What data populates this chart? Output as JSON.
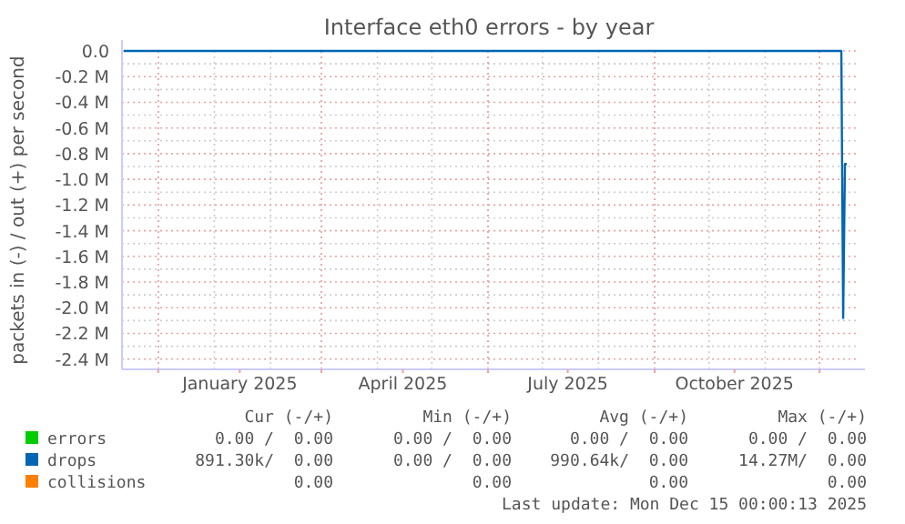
{
  "chart_data": {
    "type": "line",
    "title": "Interface eth0 errors - by year",
    "ylabel": "packets in (-) / out (+) per second",
    "xlim": [
      "2024-11-11",
      "2025-12-21"
    ],
    "xticks": [
      {
        "value": "2024-12-01",
        "label": null
      },
      {
        "value": "2025-01-15",
        "label": "January 2025"
      },
      {
        "value": "2025-03-01",
        "label": null
      },
      {
        "value": "2025-04-15",
        "label": "April 2025"
      },
      {
        "value": "2025-06-01",
        "label": null
      },
      {
        "value": "2025-07-15",
        "label": "July 2025"
      },
      {
        "value": "2025-09-01",
        "label": null
      },
      {
        "value": "2025-10-15",
        "label": "October 2025"
      },
      {
        "value": "2025-12-01",
        "label": null
      }
    ],
    "ylim": [
      -2480000,
      0
    ],
    "yticks": [
      {
        "value": 0,
        "label": "0.0"
      },
      {
        "value": -200000,
        "label": "-0.2 M"
      },
      {
        "value": -400000,
        "label": "-0.4 M"
      },
      {
        "value": -600000,
        "label": "-0.6 M"
      },
      {
        "value": -800000,
        "label": "-0.8 M"
      },
      {
        "value": -1000000,
        "label": "-1.0 M"
      },
      {
        "value": -1200000,
        "label": "-1.2 M"
      },
      {
        "value": -1400000,
        "label": "-1.4 M"
      },
      {
        "value": -1600000,
        "label": "-1.6 M"
      },
      {
        "value": -1800000,
        "label": "-1.8 M"
      },
      {
        "value": -2000000,
        "label": "-2.0 M"
      },
      {
        "value": -2200000,
        "label": "-2.2 M"
      },
      {
        "value": -2400000,
        "label": "-2.4 M"
      }
    ],
    "grid": true,
    "legend": "bottom left",
    "marker": "none",
    "line_style": "solid",
    "series": [
      {
        "name": "errors",
        "color": "#00cc00"
      },
      {
        "name": "collisions",
        "color": "#ff8000"
      },
      {
        "name": "drops",
        "color": "#0066b3",
        "x": [
          "2024-11-12",
          "2025-12-13",
          "2025-12-14",
          "2025-12-15",
          "2025-12-16"
        ],
        "values": [
          0,
          0,
          -2080000,
          -880000,
          -880000
        ]
      }
    ],
    "annotations": [
      "Cur (-/+)",
      "Min (-/+)",
      "Avg (-/+)",
      "Max (-/+)",
      "0.00 /  0.00",
      "0.00 /  0.00",
      "0.00 /  0.00",
      "0.00 /  0.00",
      "891.30k/  0.00",
      "0.00 /  0.00",
      "990.64k/  0.00",
      "14.27M/  0.00",
      "0.00",
      "0.00",
      "0.00",
      "0.00",
      "Last update: Mon Dec 15 00:00:13 2025"
    ]
  }
}
